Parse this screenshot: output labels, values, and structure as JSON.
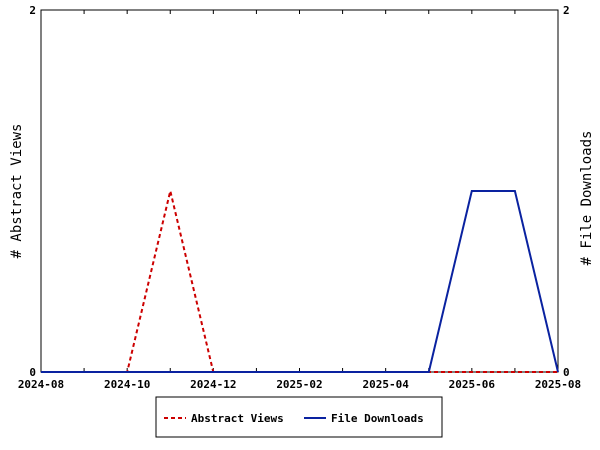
{
  "chart_data": {
    "type": "line",
    "title": "",
    "xlabel": "",
    "ylabel_left": "# Abstract Views",
    "ylabel_right": "# File Downloads",
    "ylim": [
      0,
      2
    ],
    "y_ticks": [
      "0",
      "2"
    ],
    "x": [
      "2024-08",
      "2024-09",
      "2024-10",
      "2024-11",
      "2024-12",
      "2025-01",
      "2025-02",
      "2025-03",
      "2025-04",
      "2025-05",
      "2025-06",
      "2025-07",
      "2025-08"
    ],
    "x_tick_labels": [
      "2024-08",
      "2024-10",
      "2024-12",
      "2025-02",
      "2025-04",
      "2025-06",
      "2025-08"
    ],
    "series": [
      {
        "name": "Abstract Views",
        "axis": "left",
        "color": "#cc0000",
        "style": "dashed",
        "values": [
          0,
          0,
          0,
          1,
          0,
          0,
          0,
          0,
          0,
          0,
          0,
          0,
          0
        ]
      },
      {
        "name": "File Downloads",
        "axis": "right",
        "color": "#0a22a0",
        "style": "solid",
        "values": [
          0,
          0,
          0,
          0,
          0,
          0,
          0,
          0,
          0,
          0,
          1,
          1,
          0
        ]
      }
    ],
    "grid": false,
    "legend_position": "bottom-center"
  }
}
